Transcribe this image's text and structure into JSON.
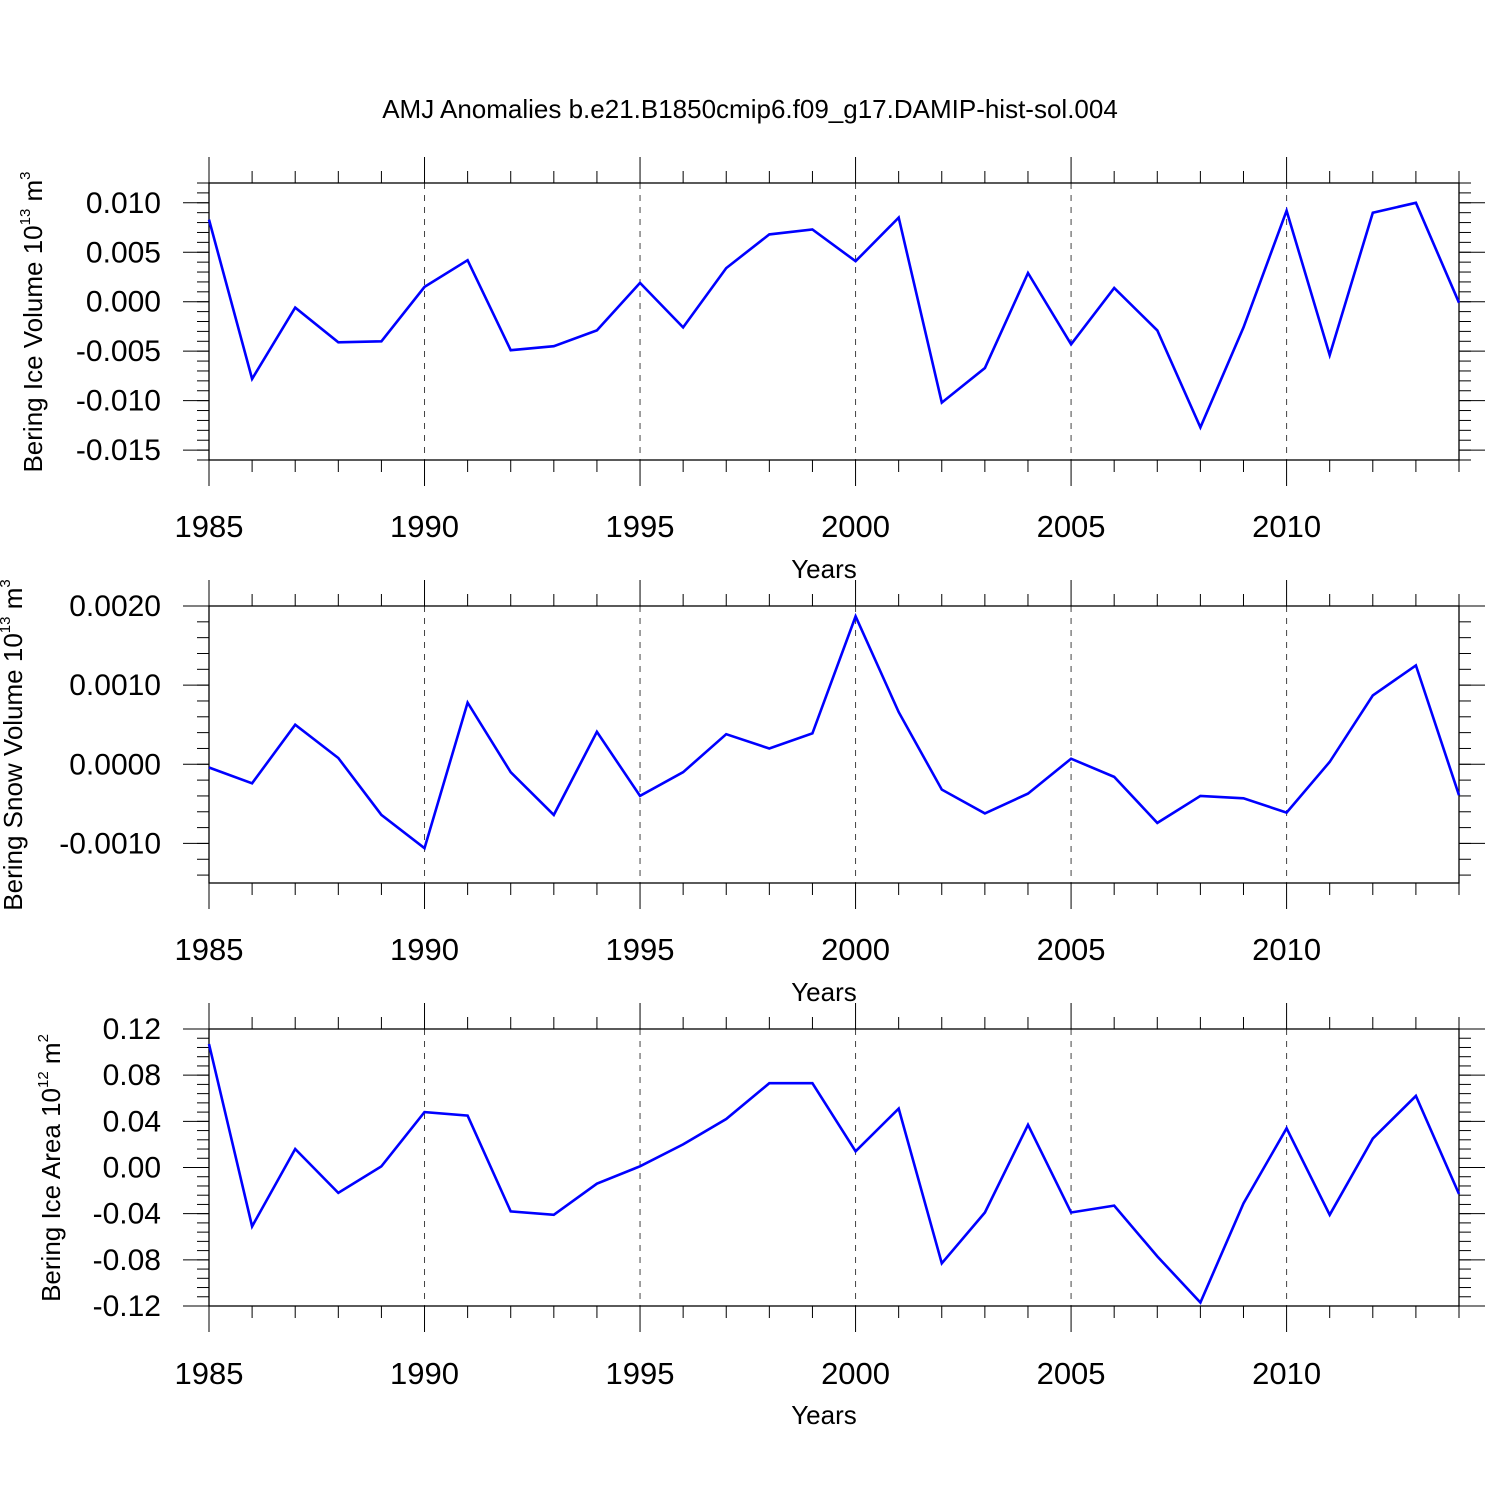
{
  "title": "AMJ Anomalies b.e21.B1850cmip6.f09_g17.DAMIP-hist-sol.004",
  "chart_data": [
    {
      "type": "line",
      "xlabel": "Years",
      "ylabel_text": "Bering Ice Volume 10",
      "ylabel_exp": "13",
      "ylabel_unit": " m",
      "ylabel_unit_exp": "3",
      "xlim": [
        1985,
        2014
      ],
      "ylim": [
        -0.016,
        0.012
      ],
      "xticks": [
        1985,
        1990,
        1995,
        2000,
        2005,
        2010
      ],
      "xtick_labels": [
        "1985",
        "1990",
        "1995",
        "2000",
        "2005",
        "2010"
      ],
      "yticks": [
        -0.015,
        -0.01,
        -0.005,
        0.0,
        0.005,
        0.01
      ],
      "ytick_labels": [
        "-0.015",
        "-0.010",
        "-0.005",
        "0.000",
        "0.005",
        "0.010"
      ],
      "yminor_step": 0.001,
      "line_color": "#0000ff",
      "series": [
        {
          "name": "Bering Ice Volume",
          "x": [
            1985,
            1986,
            1987,
            1988,
            1989,
            1990,
            1991,
            1992,
            1993,
            1994,
            1995,
            1996,
            1997,
            1998,
            1999,
            2000,
            2001,
            2002,
            2003,
            2004,
            2005,
            2006,
            2007,
            2008,
            2009,
            2010,
            2011,
            2012,
            2013,
            2014
          ],
          "values": [
            0.0083,
            -0.0078,
            -0.0006,
            -0.0041,
            -0.004,
            0.0015,
            0.0042,
            -0.0049,
            -0.0045,
            -0.0029,
            0.0019,
            -0.0026,
            0.0034,
            0.0068,
            0.0073,
            0.0041,
            0.0085,
            -0.0102,
            -0.0067,
            0.0029,
            -0.0043,
            0.0014,
            -0.0029,
            -0.0127,
            -0.0026,
            0.0092,
            -0.0054,
            0.009,
            0.01,
            -0.0001
          ]
        }
      ]
    },
    {
      "type": "line",
      "xlabel": "Years",
      "ylabel_text": "Bering Snow Volume 10",
      "ylabel_exp": "13",
      "ylabel_unit": " m",
      "ylabel_unit_exp": "3",
      "xlim": [
        1985,
        2014
      ],
      "ylim": [
        -0.0015,
        0.002
      ],
      "xticks": [
        1985,
        1990,
        1995,
        2000,
        2005,
        2010
      ],
      "xtick_labels": [
        "1985",
        "1990",
        "1995",
        "2000",
        "2005",
        "2010"
      ],
      "yticks": [
        -0.001,
        0.0,
        0.001,
        0.002
      ],
      "ytick_labels": [
        "-0.0010",
        "0.0000",
        "0.0010",
        "0.0020"
      ],
      "yminor_step": 0.0002,
      "line_color": "#0000ff",
      "series": [
        {
          "name": "Bering Snow Volume",
          "x": [
            1985,
            1986,
            1987,
            1988,
            1989,
            1990,
            1991,
            1992,
            1993,
            1994,
            1995,
            1996,
            1997,
            1998,
            1999,
            2000,
            2001,
            2002,
            2003,
            2004,
            2005,
            2006,
            2007,
            2008,
            2009,
            2010,
            2011,
            2012,
            2013,
            2014
          ],
          "values": [
            -4e-05,
            -0.00024,
            0.0005,
            8e-05,
            -0.00064,
            -0.00106,
            0.00078,
            -0.0001,
            -0.00064,
            0.00041,
            -0.0004,
            -0.0001,
            0.00038,
            0.0002,
            0.00039,
            0.00187,
            0.00066,
            -0.00032,
            -0.00062,
            -0.00037,
            7e-05,
            -0.00016,
            -0.00074,
            -0.0004,
            -0.00043,
            -0.00061,
            3e-05,
            0.00087,
            0.00125,
            -0.00039
          ]
        }
      ]
    },
    {
      "type": "line",
      "xlabel": "Years",
      "ylabel_text": "Bering Ice Area 10",
      "ylabel_exp": "12",
      "ylabel_unit": " m",
      "ylabel_unit_exp": "2",
      "xlim": [
        1985,
        2014
      ],
      "ylim": [
        -0.12,
        0.12
      ],
      "xticks": [
        1985,
        1990,
        1995,
        2000,
        2005,
        2010
      ],
      "xtick_labels": [
        "1985",
        "1990",
        "1995",
        "2000",
        "2005",
        "2010"
      ],
      "yticks": [
        -0.12,
        -0.08,
        -0.04,
        0.0,
        0.04,
        0.08,
        0.12
      ],
      "ytick_labels": [
        "-0.12",
        "-0.08",
        "-0.04",
        "0.00",
        "0.04",
        "0.08",
        "0.12"
      ],
      "yminor_step": 0.008,
      "line_color": "#0000ff",
      "series": [
        {
          "name": "Bering Ice Area",
          "x": [
            1985,
            1986,
            1987,
            1988,
            1989,
            1990,
            1991,
            1992,
            1993,
            1994,
            1995,
            1996,
            1997,
            1998,
            1999,
            2000,
            2001,
            2002,
            2003,
            2004,
            2005,
            2006,
            2007,
            2008,
            2009,
            2010,
            2011,
            2012,
            2013,
            2014
          ],
          "values": [
            0.107,
            -0.051,
            0.016,
            -0.022,
            0.001,
            0.048,
            0.045,
            -0.038,
            -0.041,
            -0.014,
            0.001,
            0.02,
            0.042,
            0.073,
            0.073,
            0.014,
            0.051,
            -0.083,
            -0.039,
            0.037,
            -0.039,
            -0.033,
            -0.077,
            -0.117,
            -0.031,
            0.034,
            -0.041,
            0.025,
            0.062,
            -0.023
          ]
        }
      ]
    }
  ]
}
